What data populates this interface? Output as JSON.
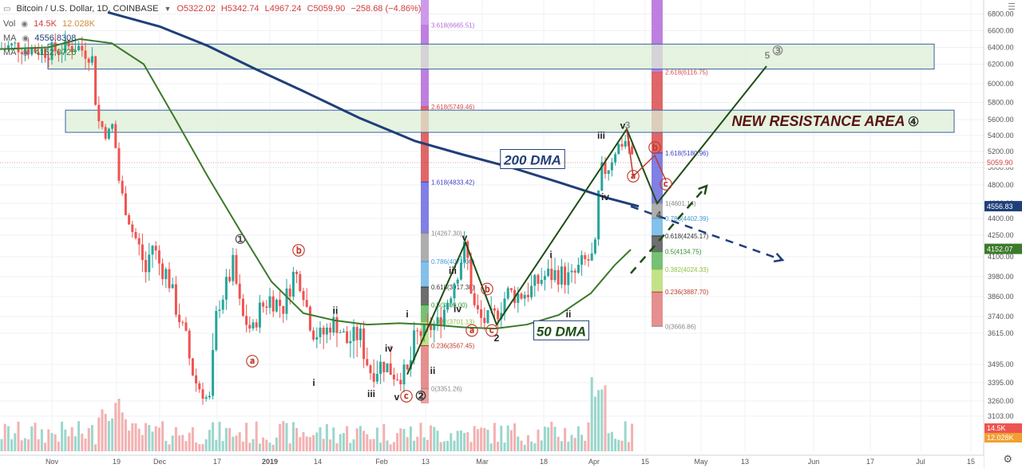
{
  "header": {
    "symbol": "Bitcoin / U.S. Dollar, 1D, COINBASE",
    "open": "O5322.02",
    "high": "H5342.74",
    "low": "L4967.24",
    "close": "C5059.90",
    "change": "−258.68 (−4.86%)",
    "vol_label": "Vol",
    "vol_value": "14.5K",
    "vol_ma": "12.028K",
    "ma1_label": "MA",
    "ma1_value": "4556.8308",
    "ma2_label": "MA",
    "ma2_value": "4152.0726"
  },
  "colors": {
    "up": "#26a69a",
    "down": "#ef5350",
    "dma200": "#1f3f7a",
    "dma50": "#3b7a2a",
    "wave": "#1e4d14",
    "resistance_fill": "#dcefd6",
    "resistance_stroke": "#3a5fa6",
    "annotation_red": "#c0392b"
  },
  "chart_data": {
    "type": "candlestick",
    "timeframe": "1D",
    "ylim": [
      3103,
      6900
    ],
    "y_ticks": [
      "6800.00",
      "6600.00",
      "6400.00",
      "6200.00",
      "6000.00",
      "5800.00",
      "5600.00",
      "5400.00",
      "5200.00",
      "5000.00",
      "4800.00",
      "4600.00",
      "4400.00",
      "4250.00",
      "4100.00",
      "3980.00",
      "3860.00",
      "3740.00",
      "3615.00",
      "3495.00",
      "3395.00",
      "3260.00",
      "3103.00"
    ],
    "x_ticks": [
      "Nov",
      "19",
      "Dec",
      "17",
      "2019",
      "14",
      "Feb",
      "13",
      "Mar",
      "18",
      "Apr",
      "15",
      "May",
      "13",
      "Jun",
      "17",
      "Jul",
      "15"
    ],
    "price_labels": {
      "last": "5059.90",
      "ma200": "4556.83",
      "ma50": "4152.07",
      "vol": "14.5K",
      "vol_ma": "12.028K"
    },
    "ohlc_anchors": [
      {
        "x": 0,
        "close": 6390
      },
      {
        "x": 20,
        "close": 6420
      },
      {
        "x": 40,
        "close": 6380
      },
      {
        "x": 60,
        "close": 6350
      },
      {
        "x": 95,
        "close": 6420
      },
      {
        "x": 115,
        "close": 6300
      },
      {
        "x": 122,
        "close": 5600
      },
      {
        "x": 135,
        "close": 5400
      },
      {
        "x": 142,
        "close": 5550
      },
      {
        "x": 148,
        "close": 4900
      },
      {
        "x": 156,
        "close": 4550
      },
      {
        "x": 165,
        "close": 4300
      },
      {
        "x": 175,
        "close": 4150
      },
      {
        "x": 183,
        "close": 4000
      },
      {
        "x": 190,
        "close": 4200
      },
      {
        "x": 200,
        "close": 4050
      },
      {
        "x": 210,
        "close": 3990
      },
      {
        "x": 220,
        "close": 3800
      },
      {
        "x": 232,
        "close": 3600
      },
      {
        "x": 245,
        "close": 3400
      },
      {
        "x": 262,
        "close": 3250
      },
      {
        "x": 272,
        "close": 3800
      },
      {
        "x": 282,
        "close": 3900
      },
      {
        "x": 292,
        "close": 4050
      },
      {
        "x": 302,
        "close": 3750
      },
      {
        "x": 316,
        "close": 3630
      },
      {
        "x": 325,
        "close": 3780
      },
      {
        "x": 338,
        "close": 3850
      },
      {
        "x": 355,
        "close": 3800
      },
      {
        "x": 368,
        "close": 4000
      },
      {
        "x": 378,
        "close": 3950
      },
      {
        "x": 390,
        "close": 3650
      },
      {
        "x": 403,
        "close": 3600
      },
      {
        "x": 418,
        "close": 3700
      },
      {
        "x": 433,
        "close": 3580
      },
      {
        "x": 450,
        "close": 3620
      },
      {
        "x": 465,
        "close": 3450
      },
      {
        "x": 480,
        "close": 3500
      },
      {
        "x": 495,
        "close": 3440
      },
      {
        "x": 510,
        "close": 3440
      },
      {
        "x": 520,
        "close": 3600
      },
      {
        "x": 535,
        "close": 3640
      },
      {
        "x": 550,
        "close": 3700
      },
      {
        "x": 565,
        "close": 3900
      },
      {
        "x": 575,
        "close": 4050
      },
      {
        "x": 583,
        "close": 4180
      },
      {
        "x": 593,
        "close": 3800
      },
      {
        "x": 605,
        "close": 3700
      },
      {
        "x": 620,
        "close": 3740
      },
      {
        "x": 635,
        "close": 3880
      },
      {
        "x": 650,
        "close": 3870
      },
      {
        "x": 665,
        "close": 3900
      },
      {
        "x": 680,
        "close": 3980
      },
      {
        "x": 700,
        "close": 4000
      },
      {
        "x": 715,
        "close": 3960
      },
      {
        "x": 730,
        "close": 4060
      },
      {
        "x": 745,
        "close": 4100
      },
      {
        "x": 752,
        "close": 5000
      },
      {
        "x": 760,
        "close": 4950
      },
      {
        "x": 772,
        "close": 5250
      },
      {
        "x": 785,
        "close": 5350
      },
      {
        "x": 793,
        "close": 5080
      }
    ],
    "ma200_points": [
      {
        "x": 135,
        "y": 6820
      },
      {
        "x": 200,
        "y": 6650
      },
      {
        "x": 260,
        "y": 6420
      },
      {
        "x": 320,
        "y": 6150
      },
      {
        "x": 380,
        "y": 5920
      },
      {
        "x": 450,
        "y": 5620
      },
      {
        "x": 520,
        "y": 5330
      },
      {
        "x": 580,
        "y": 5160
      },
      {
        "x": 640,
        "y": 5000
      },
      {
        "x": 700,
        "y": 4830
      },
      {
        "x": 760,
        "y": 4660
      },
      {
        "x": 800,
        "y": 4560
      }
    ],
    "ma50_points": [
      {
        "x": 0,
        "y": 6380
      },
      {
        "x": 60,
        "y": 6400
      },
      {
        "x": 100,
        "y": 6500
      },
      {
        "x": 140,
        "y": 6450
      },
      {
        "x": 180,
        "y": 6200
      },
      {
        "x": 220,
        "y": 5600
      },
      {
        "x": 260,
        "y": 4900
      },
      {
        "x": 300,
        "y": 4300
      },
      {
        "x": 340,
        "y": 3950
      },
      {
        "x": 380,
        "y": 3760
      },
      {
        "x": 420,
        "y": 3710
      },
      {
        "x": 460,
        "y": 3680
      },
      {
        "x": 500,
        "y": 3690
      },
      {
        "x": 540,
        "y": 3680
      },
      {
        "x": 580,
        "y": 3660
      },
      {
        "x": 620,
        "y": 3650
      },
      {
        "x": 660,
        "y": 3680
      },
      {
        "x": 700,
        "y": 3750
      },
      {
        "x": 740,
        "y": 3880
      },
      {
        "x": 770,
        "y": 4050
      },
      {
        "x": 790,
        "y": 4150
      }
    ],
    "resistance_zones": [
      {
        "from": 6150,
        "to": 6440,
        "x_start": 60,
        "x_end": 1170,
        "label": ""
      },
      {
        "from": 5440,
        "to": 5710,
        "x_start": 82,
        "x_end": 1195,
        "label": "NEW RESISTANCE AREA"
      }
    ],
    "fib_left": {
      "x_start": 527,
      "x_end": 537,
      "levels": [
        {
          "ratio": "3.618",
          "price": 6665.51,
          "label": "3.618(6665.51)",
          "color": "#b36ad9"
        },
        {
          "ratio": "2.618",
          "price": 5749.46,
          "label": "2.618(5749.46)",
          "color": "#d94c4c"
        },
        {
          "ratio": "1.618",
          "price": 4833.42,
          "label": "1.618(4833.42)",
          "color": "#3e3ec9"
        },
        {
          "ratio": "1",
          "price": 4267.3,
          "label": "1(4267.30)",
          "color": "#888888"
        },
        {
          "ratio": "0.786",
          "price": 4071.0,
          "label": "0.786(4071.00)",
          "color": "#3a9bd9"
        },
        {
          "ratio": "0.618",
          "price": 3917.38,
          "label": "0.618(3917.38)",
          "color": "#333333"
        },
        {
          "ratio": "0.5",
          "price": 3809.0,
          "label": "0.5(3809.00)",
          "color": "#2d8f2d"
        },
        {
          "ratio": "0.382",
          "price": 3701.13,
          "label": "0.382(3701.13)",
          "color": "#8fbf3f"
        },
        {
          "ratio": "0.236",
          "price": 3567.45,
          "label": "0.236(3567.45)",
          "color": "#c0392b"
        },
        {
          "ratio": "0",
          "price": 3351.26,
          "label": "0(3351.26)",
          "color": "#888888"
        }
      ]
    },
    "fib_right": {
      "x_start": 816,
      "x_end": 830,
      "levels": [
        {
          "ratio": "2.618",
          "price": 6116.75,
          "label": "2.618(6116.75)",
          "color": "#d94c4c"
        },
        {
          "ratio": "1.618",
          "price": 5180.96,
          "label": "1.618(5180.96)",
          "color": "#3e3ec9"
        },
        {
          "ratio": "1",
          "price": 4601.14,
          "label": "1(4601.14)",
          "color": "#888888"
        },
        {
          "ratio": "0.786",
          "price": 4402.39,
          "label": "0.786(4402.39)",
          "color": "#3a9bd9"
        },
        {
          "ratio": "0.618",
          "price": 4245.17,
          "label": "0.618(4245.17)",
          "color": "#333333"
        },
        {
          "ratio": "0.5",
          "price": 4134.75,
          "label": "0.5(4134.75)",
          "color": "#2d8f2d"
        },
        {
          "ratio": "0.382",
          "price": 4024.33,
          "label": "0.382(4024.33)",
          "color": "#8fbf3f"
        },
        {
          "ratio": "0.236",
          "price": 3887.7,
          "label": "0.236(3887.70)",
          "color": "#c0392b"
        },
        {
          "ratio": "0",
          "price": 3666.86,
          "label": "0(3666.86)",
          "color": "#888888"
        }
      ]
    },
    "wave_lines": [
      {
        "points": [
          [
            510,
            3440
          ],
          [
            583,
            4200
          ],
          [
            622,
            3680
          ],
          [
            785,
            5480
          ],
          [
            823,
            4600
          ],
          [
            960,
            6180
          ]
        ]
      }
    ],
    "projection_arrows": [
      {
        "from": [
          790,
          4560
        ],
        "to": [
          980,
          4080
        ],
        "dashed": true,
        "color": "#1f3f7a"
      },
      {
        "from": [
          790,
          4000
        ],
        "to": [
          885,
          4790
        ],
        "dashed": true,
        "color": "#1e4d14"
      }
    ],
    "annotations": [
      {
        "text": "200 DMA",
        "x": 667,
        "y": 5085,
        "box": true,
        "color": "#1f3f7a"
      },
      {
        "text": "50 DMA",
        "x": 703,
        "y": 3625,
        "box": true,
        "color": "#1e4d14"
      },
      {
        "text": "NEW RESISTANCE AREA",
        "x": 1025,
        "y": 5580,
        "box": false,
        "color": "#5a1414"
      },
      {
        "text": "①",
        "x": 301,
        "y": 4220,
        "color": "#555555"
      },
      {
        "text": "②",
        "x": 527,
        "y": 3295,
        "color": "#333333"
      },
      {
        "text": "③",
        "x": 974,
        "y": 6355,
        "color": "#888888"
      },
      {
        "text": "④",
        "x": 1144,
        "y": 5570,
        "color": "#333333"
      },
      {
        "text": "5",
        "x": 961,
        "y": 6315,
        "color": "#888888"
      },
      {
        "text": "3",
        "x": 786,
        "y": 5540,
        "color": "#888888"
      },
      {
        "text": "4",
        "x": 825,
        "y": 4460,
        "color": "#555555"
      },
      {
        "text": "v",
        "x": 780,
        "y": 5535,
        "color": "#222222"
      },
      {
        "text": "v",
        "x": 497,
        "y": 3295,
        "color": "#222222"
      },
      {
        "text": "v",
        "x": 582,
        "y": 4240,
        "color": "#222222"
      },
      {
        "text": "iii",
        "x": 753,
        "y": 5410,
        "color": "#222222"
      },
      {
        "text": "iii",
        "x": 567,
        "y": 4020,
        "color": "#222222"
      },
      {
        "text": "iii",
        "x": 465,
        "y": 3320,
        "color": "#222222"
      },
      {
        "text": "iv",
        "x": 758,
        "y": 4680,
        "color": "#222222"
      },
      {
        "text": "iv",
        "x": 573,
        "y": 3790,
        "color": "#222222"
      },
      {
        "text": "iv",
        "x": 487,
        "y": 3560,
        "color": "#222222"
      },
      {
        "text": "ii",
        "x": 712,
        "y": 3760,
        "color": "#222222"
      },
      {
        "text": "ii",
        "x": 542,
        "y": 3465,
        "color": "#222222"
      },
      {
        "text": "ii",
        "x": 420,
        "y": 3780,
        "color": "#222222"
      },
      {
        "text": "i",
        "x": 690,
        "y": 4120,
        "color": "#222222"
      },
      {
        "text": "i",
        "x": 510,
        "y": 3760,
        "color": "#222222"
      },
      {
        "text": "i",
        "x": 393,
        "y": 3400,
        "color": "#222222"
      },
      {
        "text": "2",
        "x": 622,
        "y": 3600,
        "color": "#222222"
      },
      {
        "text": "ⓐ",
        "x": 316,
        "y": 3505,
        "color": "#c0392b"
      },
      {
        "text": "ⓑ",
        "x": 374,
        "y": 4140,
        "color": "#c0392b"
      },
      {
        "text": "ⓒ",
        "x": 509,
        "y": 3290,
        "color": "#c0392b"
      },
      {
        "text": "ⓐ",
        "x": 591,
        "y": 3630,
        "color": "#c0392b"
      },
      {
        "text": "ⓑ",
        "x": 610,
        "y": 3900,
        "color": "#c0392b"
      },
      {
        "text": "ⓒ",
        "x": 616,
        "y": 3630,
        "color": "#c0392b"
      },
      {
        "text": "ⓐ",
        "x": 793,
        "y": 4890,
        "color": "#c0392b"
      },
      {
        "text": "ⓑ",
        "x": 820,
        "y": 5240,
        "color": "#c0392b"
      },
      {
        "text": "ⓒ",
        "x": 834,
        "y": 4800,
        "color": "#c0392b"
      }
    ]
  }
}
